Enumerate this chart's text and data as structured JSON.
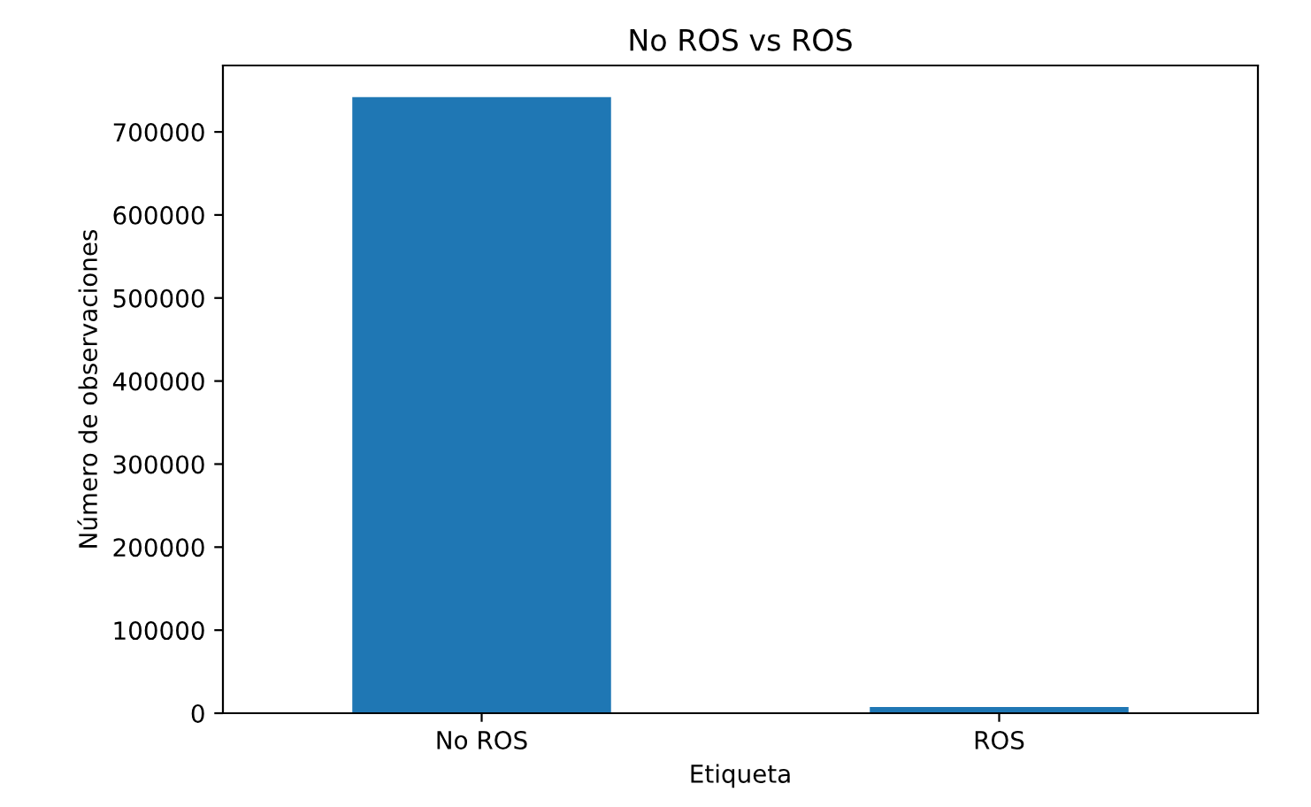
{
  "chart_data": {
    "type": "bar",
    "title": "No ROS vs ROS",
    "xlabel": "Etiqueta",
    "ylabel": "Número de observaciones",
    "categories": [
      "No ROS",
      "ROS"
    ],
    "values": [
      742000,
      7500
    ],
    "color": "#1f77b4",
    "ylim": [
      0,
      780000
    ],
    "yticks": [
      0,
      100000,
      200000,
      300000,
      400000,
      500000,
      600000,
      700000
    ],
    "grid": false,
    "legend": false
  }
}
